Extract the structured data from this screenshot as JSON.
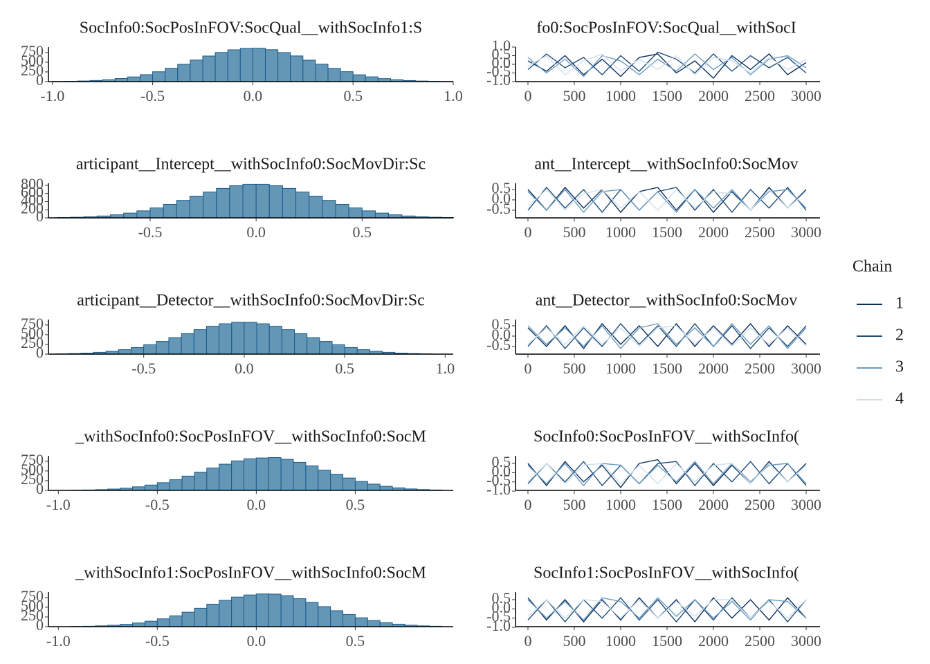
{
  "chart_data": [
    {
      "type": "histogram",
      "title": "SocInfo0:SocPosInFOV:SocQual__withSocInfo1:S",
      "bins": [
        -1.0,
        -0.9375,
        -0.875,
        -0.8125,
        -0.75,
        -0.6875,
        -0.625,
        -0.5625,
        -0.5,
        -0.4375,
        -0.375,
        -0.3125,
        -0.25,
        -0.1875,
        -0.125,
        -0.0625,
        0.0,
        0.0625,
        0.125,
        0.1875,
        0.25,
        0.3125,
        0.375,
        0.4375,
        0.5,
        0.5625,
        0.625,
        0.6875,
        0.75,
        0.8125,
        0.875,
        0.9375,
        1.0
      ],
      "values": [
        5,
        9,
        16,
        29,
        49,
        79,
        121,
        179,
        254,
        344,
        446,
        555,
        659,
        751,
        819,
        855,
        860,
        822,
        748,
        661,
        552,
        449,
        340,
        256,
        176,
        123,
        77,
        50,
        28,
        15,
        9,
        5
      ],
      "color": "#6397b5",
      "edgecolor": "#1c5a8a",
      "xlim": [
        -1.02,
        1.0
      ],
      "xticks": [
        {
          "value": -1.0,
          "label": "-1.0"
        },
        -0.5,
        {
          "value": 0.0,
          "label": "0.0"
        },
        0.5,
        {
          "value": 1.0,
          "label": "1.0"
        }
      ],
      "ylim": [
        0,
        890
      ],
      "yticks": [
        0,
        250,
        500,
        750
      ]
    },
    {
      "type": "line",
      "title": "fo0:SocPosInFOV:SocQual__withSocI",
      "legend_title": "Chain",
      "x": [
        0,
        200,
        400,
        600,
        800,
        1000,
        1200,
        1400,
        1600,
        1800,
        2000,
        2200,
        2400,
        2600,
        2800,
        3000
      ],
      "series": [
        {
          "name": "1",
          "color": "#0b2e5c",
          "values": [
            0.2,
            -0.4,
            0.5,
            -0.6,
            0.3,
            -0.7,
            0.4,
            0.6,
            -0.5,
            0.2,
            -0.8,
            0.5,
            -0.3,
            0.6,
            -0.6,
            0.1
          ]
        },
        {
          "name": "2",
          "color": "#1f4e79",
          "values": [
            -0.3,
            0.6,
            -0.2,
            0.4,
            -0.6,
            0.5,
            -0.4,
            0.7,
            0.3,
            -0.5,
            0.6,
            -0.4,
            0.5,
            -0.2,
            0.4,
            -0.5
          ]
        },
        {
          "name": "3",
          "color": "#6a9bc0",
          "values": [
            0.4,
            -0.5,
            0.3,
            -0.7,
            0.5,
            0.2,
            -0.6,
            0.3,
            -0.4,
            0.6,
            -0.3,
            0.4,
            -0.6,
            0.3,
            0.5,
            -0.2
          ]
        },
        {
          "name": "4",
          "color": "#cfe0ec",
          "values": [
            -0.1,
            0.5,
            -0.6,
            0.2,
            0.6,
            -0.4,
            0.3,
            -0.3,
            0.5,
            -0.6,
            0.4,
            0.2,
            -0.5,
            0.4,
            -0.3,
            0.3
          ]
        }
      ],
      "xlim": [
        -134,
        3149
      ],
      "xticks": [
        0,
        500,
        1000,
        1500,
        2000,
        2500,
        3000
      ],
      "ylim": [
        -1.0,
        1.0
      ],
      "yticks": [
        {
          "value": -1.0,
          "label": "-1.0"
        },
        -0.5,
        {
          "value": 0.0,
          "label": "0.0"
        },
        0.5,
        {
          "value": 1.0,
          "label": "1.0"
        }
      ]
    },
    {
      "type": "histogram",
      "title": "articipant__Intercept__withSocInfo0:SocMovDir:Sc",
      "bins": [
        -0.9375,
        -0.875,
        -0.8125,
        -0.75,
        -0.6875,
        -0.625,
        -0.5625,
        -0.5,
        -0.4375,
        -0.375,
        -0.3125,
        -0.25,
        -0.1875,
        -0.125,
        -0.0625,
        0.0,
        0.0625,
        0.125,
        0.1875,
        0.25,
        0.3125,
        0.375,
        0.4375,
        0.5,
        0.5625,
        0.625,
        0.6875,
        0.75,
        0.8125,
        0.875,
        0.9375
      ],
      "values": [
        9,
        16,
        28,
        47,
        76,
        117,
        173,
        245,
        332,
        430,
        535,
        636,
        725,
        790,
        826,
        826,
        790,
        725,
        636,
        535,
        430,
        332,
        245,
        173,
        117,
        76,
        47,
        28,
        16,
        9
      ],
      "color": "#6397b5",
      "edgecolor": "#1c5a8a",
      "xlim": [
        -0.98,
        0.93
      ],
      "xticks": [
        -0.5,
        {
          "value": 0.0,
          "label": "0.0"
        },
        0.5
      ],
      "ylim": [
        0,
        850
      ],
      "yticks": [
        0,
        200,
        400,
        600,
        800
      ]
    },
    {
      "type": "line",
      "title": "ant__Intercept__withSocInfo0:SocMov",
      "x": [
        0,
        200,
        400,
        600,
        800,
        1000,
        1200,
        1400,
        1600,
        1800,
        2000,
        2200,
        2400,
        2600,
        2800,
        3000
      ],
      "series": [
        {
          "name": "1",
          "color": "#0b2e5c",
          "values": [
            0.5,
            -0.5,
            0.6,
            -0.4,
            0.5,
            -0.6,
            0.4,
            0.6,
            -0.5,
            0.5,
            -0.6,
            0.4,
            -0.5,
            0.6,
            -0.4,
            0.5
          ]
        },
        {
          "name": "2",
          "color": "#1f4e79",
          "values": [
            -0.5,
            0.6,
            -0.4,
            0.5,
            -0.6,
            0.5,
            -0.5,
            0.4,
            0.6,
            -0.5,
            0.5,
            -0.6,
            0.5,
            -0.4,
            0.6,
            -0.5
          ]
        },
        {
          "name": "3",
          "color": "#6a9bc0",
          "values": [
            0.4,
            -0.5,
            0.5,
            -0.6,
            0.4,
            0.5,
            -0.5,
            0.4,
            -0.6,
            0.5,
            -0.4,
            0.5,
            -0.5,
            0.4,
            0.5,
            -0.4
          ]
        },
        {
          "name": "4",
          "color": "#cfe0ec",
          "values": [
            -0.3,
            0.5,
            -0.5,
            0.3,
            0.5,
            -0.4,
            0.4,
            -0.5,
            0.5,
            -0.4,
            0.4,
            0.3,
            -0.5,
            0.5,
            -0.4,
            0.4
          ]
        }
      ],
      "xlim": [
        -134,
        3149
      ],
      "xticks": [
        0,
        500,
        1000,
        1500,
        2000,
        2500,
        3000
      ],
      "ylim": [
        -0.87,
        0.8
      ],
      "yticks": [
        -0.5,
        {
          "value": 0.0,
          "label": "0.0"
        },
        0.5
      ]
    },
    {
      "type": "histogram",
      "title": "articipant__Detector__withSocInfo0:SocMovDir:Sc",
      "bins": [
        -0.9375,
        -0.875,
        -0.8125,
        -0.75,
        -0.6875,
        -0.625,
        -0.5625,
        -0.5,
        -0.4375,
        -0.375,
        -0.3125,
        -0.25,
        -0.1875,
        -0.125,
        -0.0625,
        0.0,
        0.0625,
        0.125,
        0.1875,
        0.25,
        0.3125,
        0.375,
        0.4375,
        0.5,
        0.5625,
        0.625,
        0.6875,
        0.75,
        0.8125,
        0.875,
        0.9375
      ],
      "values": [
        8,
        15,
        27,
        46,
        75,
        115,
        170,
        242,
        328,
        425,
        529,
        630,
        718,
        782,
        818,
        818,
        782,
        718,
        630,
        529,
        425,
        328,
        242,
        170,
        115,
        75,
        46,
        27,
        15,
        8
      ],
      "color": "#6397b5",
      "edgecolor": "#1c5a8a",
      "xlim": [
        -0.974,
        1.04
      ],
      "xticks": [
        -0.5,
        {
          "value": 0.0,
          "label": "0.0"
        },
        0.5,
        {
          "value": 1.0,
          "label": "1.0"
        }
      ],
      "ylim": [
        0,
        890
      ],
      "yticks": [
        0,
        250,
        500,
        750
      ]
    },
    {
      "type": "line",
      "title": "ant__Detector__withSocInfo0:SocMov",
      "x": [
        0,
        200,
        400,
        600,
        800,
        1000,
        1200,
        1400,
        1600,
        1800,
        2000,
        2200,
        2400,
        2600,
        2800,
        3000
      ],
      "series": [
        {
          "name": "1",
          "color": "#0b2e5c",
          "values": [
            0.4,
            -0.5,
            0.5,
            -0.6,
            0.6,
            -0.4,
            0.5,
            -0.5,
            0.6,
            -0.5,
            0.5,
            -0.4,
            0.6,
            -0.5,
            0.5,
            -0.4
          ]
        },
        {
          "name": "2",
          "color": "#1f4e79",
          "values": [
            -0.5,
            0.5,
            -0.6,
            0.4,
            -0.5,
            0.6,
            -0.4,
            0.5,
            -0.5,
            0.6,
            -0.5,
            0.5,
            -0.6,
            0.4,
            -0.5,
            0.5
          ]
        },
        {
          "name": "3",
          "color": "#6a9bc0",
          "values": [
            0.5,
            -0.4,
            0.4,
            -0.5,
            0.5,
            -0.6,
            0.4,
            0.6,
            -0.4,
            0.4,
            -0.5,
            0.6,
            -0.4,
            0.5,
            -0.6,
            0.4
          ]
        },
        {
          "name": "4",
          "color": "#cfe0ec",
          "values": [
            -0.4,
            0.4,
            -0.4,
            0.5,
            -0.4,
            0.4,
            -0.5,
            0.4,
            0.5,
            -0.4,
            0.4,
            -0.5,
            0.4,
            -0.4,
            0.4,
            -0.5
          ]
        }
      ],
      "xlim": [
        -134,
        3149
      ],
      "xticks": [
        0,
        500,
        1000,
        1500,
        2000,
        2500,
        3000
      ],
      "ylim": [
        -0.87,
        0.8
      ],
      "yticks": [
        -0.5,
        {
          "value": 0.0,
          "label": "0.0"
        },
        0.5
      ]
    },
    {
      "type": "histogram",
      "title": "_withSocInfo0:SocPosInFOV__withSocInfo0:SocM",
      "bins": [
        -0.9375,
        -0.875,
        -0.8125,
        -0.75,
        -0.6875,
        -0.625,
        -0.5625,
        -0.5,
        -0.4375,
        -0.375,
        -0.3125,
        -0.25,
        -0.1875,
        -0.125,
        -0.0625,
        0.0,
        0.0625,
        0.125,
        0.1875,
        0.25,
        0.3125,
        0.375,
        0.4375,
        0.5,
        0.5625,
        0.625,
        0.6875,
        0.75,
        0.8125,
        0.875,
        0.9375
      ],
      "values": [
        6,
        11,
        20,
        35,
        58,
        92,
        138,
        198,
        275,
        368,
        470,
        575,
        675,
        760,
        815,
        835,
        845,
        800,
        722,
        630,
        520,
        415,
        318,
        232,
        162,
        106,
        66,
        38,
        21,
        11
      ],
      "color": "#6397b5",
      "edgecolor": "#1c5a8a",
      "xlim": [
        -1.05,
        0.995
      ],
      "xticks": [
        {
          "value": -1.0,
          "label": "-1.0"
        },
        -0.5,
        {
          "value": 0.0,
          "label": "0.0"
        },
        0.5
      ],
      "ylim": [
        0,
        890
      ],
      "yticks": [
        0,
        250,
        500,
        750
      ]
    },
    {
      "type": "line",
      "title": "SocInfo0:SocPosInFOV__withSocInfo(",
      "x": [
        0,
        200,
        400,
        600,
        800,
        1000,
        1200,
        1400,
        1600,
        1800,
        2000,
        2200,
        2400,
        2600,
        2800,
        3000
      ],
      "series": [
        {
          "name": "1",
          "color": "#0b2e5c",
          "values": [
            0.5,
            -0.7,
            0.6,
            -0.5,
            0.4,
            -0.8,
            0.5,
            0.7,
            -0.6,
            0.5,
            -0.7,
            0.4,
            -0.6,
            0.6,
            -0.5,
            0.5
          ]
        },
        {
          "name": "2",
          "color": "#1f4e79",
          "values": [
            -0.6,
            0.5,
            -0.5,
            0.6,
            -0.7,
            0.4,
            -0.6,
            0.5,
            0.6,
            -0.7,
            0.5,
            -0.5,
            0.6,
            -0.6,
            0.5,
            -0.7
          ]
        },
        {
          "name": "3",
          "color": "#6a9bc0",
          "values": [
            0.4,
            -0.6,
            0.5,
            -0.7,
            0.5,
            0.4,
            -0.6,
            0.4,
            -0.5,
            0.6,
            -0.6,
            0.5,
            -0.5,
            0.4,
            0.5,
            -0.6
          ]
        },
        {
          "name": "4",
          "color": "#cfe0ec",
          "values": [
            -0.5,
            0.5,
            -0.6,
            0.4,
            0.5,
            -0.6,
            0.4,
            -0.6,
            0.5,
            -0.5,
            0.4,
            0.5,
            -0.6,
            0.5,
            -0.5,
            0.4
          ]
        }
      ],
      "xlim": [
        -134,
        3149
      ],
      "xticks": [
        0,
        500,
        1000,
        1500,
        2000,
        2500,
        3000
      ],
      "ylim": [
        -0.96,
        0.91
      ],
      "yticks": [
        {
          "value": -1.0,
          "label": "-1.0"
        },
        -0.5,
        {
          "value": 0.0,
          "label": "0.0"
        },
        0.5
      ]
    },
    {
      "type": "histogram",
      "title": "_withSocInfo1:SocPosInFOV__withSocInfo0:SocM",
      "bins": [
        -0.9375,
        -0.875,
        -0.8125,
        -0.75,
        -0.6875,
        -0.625,
        -0.5625,
        -0.5,
        -0.4375,
        -0.375,
        -0.3125,
        -0.25,
        -0.1875,
        -0.125,
        -0.0625,
        0.0,
        0.0625,
        0.125,
        0.1875,
        0.25,
        0.3125,
        0.375,
        0.4375,
        0.5,
        0.5625,
        0.625,
        0.6875,
        0.75,
        0.8125,
        0.875,
        0.9375
      ],
      "values": [
        6,
        11,
        21,
        36,
        60,
        94,
        140,
        201,
        279,
        372,
        474,
        579,
        678,
        762,
        816,
        842,
        838,
        798,
        720,
        626,
        516,
        410,
        314,
        228,
        158,
        104,
        64,
        37,
        20,
        11
      ],
      "color": "#6397b5",
      "edgecolor": "#1c5a8a",
      "xlim": [
        -1.05,
        0.995
      ],
      "xticks": [
        {
          "value": -1.0,
          "label": "-1.0"
        },
        -0.5,
        {
          "value": 0.0,
          "label": "0.0"
        },
        0.5
      ],
      "ylim": [
        0,
        890
      ],
      "yticks": [
        0,
        250,
        500,
        750
      ]
    },
    {
      "type": "line",
      "title": "SocInfo1:SocPosInFOV__withSocInfo(",
      "x": [
        0,
        200,
        400,
        600,
        800,
        1000,
        1200,
        1400,
        1600,
        1800,
        2000,
        2200,
        2400,
        2600,
        2800,
        3000
      ],
      "series": [
        {
          "name": "1",
          "color": "#0b2e5c",
          "values": [
            0.6,
            -0.6,
            0.5,
            -0.7,
            0.5,
            -0.6,
            0.6,
            -0.5,
            0.5,
            -0.7,
            0.6,
            -0.5,
            0.5,
            -0.6,
            0.6,
            -0.5
          ]
        },
        {
          "name": "2",
          "color": "#1f4e79",
          "values": [
            -0.6,
            0.5,
            -0.7,
            0.5,
            -0.5,
            0.6,
            -0.6,
            0.5,
            -0.7,
            0.5,
            -0.6,
            0.6,
            -0.5,
            0.5,
            -0.7,
            0.5
          ]
        },
        {
          "name": "3",
          "color": "#6a9bc0",
          "values": [
            0.5,
            -0.5,
            0.4,
            -0.6,
            0.6,
            0.4,
            -0.5,
            0.6,
            -0.4,
            0.5,
            -0.5,
            0.4,
            -0.6,
            0.5,
            0.4,
            -0.5
          ]
        },
        {
          "name": "4",
          "color": "#cfe0ec",
          "values": [
            -0.4,
            0.5,
            -0.5,
            0.5,
            0.4,
            -0.5,
            0.5,
            -0.5,
            0.4,
            -0.4,
            0.5,
            0.5,
            -0.5,
            0.4,
            -0.5,
            0.5
          ]
        }
      ],
      "xlim": [
        -134,
        3149
      ],
      "xticks": [
        0,
        500,
        1000,
        1500,
        2000,
        2500,
        3000
      ],
      "ylim": [
        -0.96,
        0.91
      ],
      "yticks": [
        {
          "value": -1.0,
          "label": "-1.0"
        },
        -0.5,
        {
          "value": 0.0,
          "label": "0.0"
        },
        0.5
      ]
    }
  ]
}
